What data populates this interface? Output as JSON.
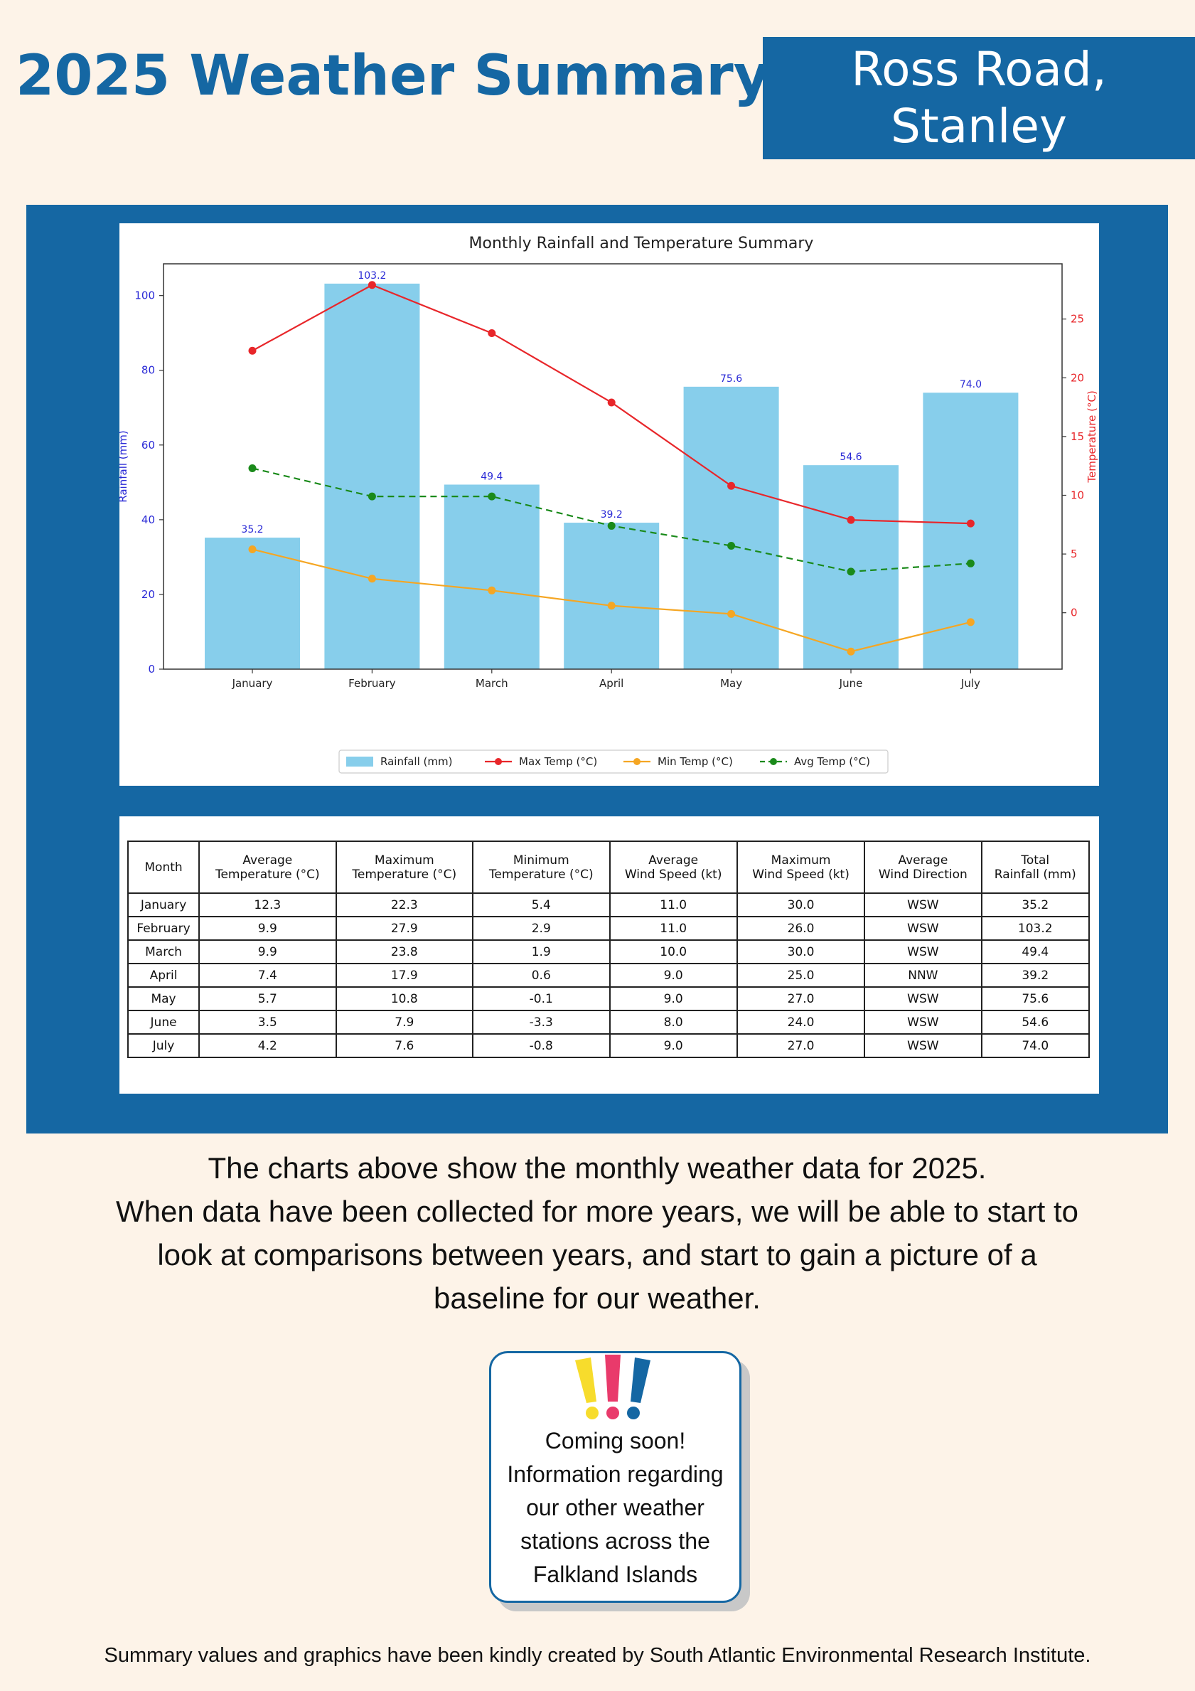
{
  "header": {
    "title": "2025 Weather Summary",
    "location_line1": "Ross Road,",
    "location_line2": "Stanley"
  },
  "colors": {
    "brand_blue": "#1567a3",
    "background": "#fdf3e8",
    "rainfall_bar": "#87ceeb",
    "max_temp": "#e8262a",
    "min_temp": "#f5a623",
    "avg_temp": "#1a8a1a"
  },
  "chart_data": {
    "type": "bar",
    "title": "Monthly Rainfall and Temperature Summary",
    "categories": [
      "January",
      "February",
      "March",
      "April",
      "May",
      "June",
      "July"
    ],
    "ylabel": "Rainfall (mm)",
    "y2label": "Temperature (°C)",
    "ylim": [
      0,
      108.5
    ],
    "y2lim": [
      -4.8,
      29.7
    ],
    "yticks": [
      0,
      20,
      40,
      60,
      80,
      100
    ],
    "y2ticks": [
      0,
      5,
      10,
      15,
      20,
      25
    ],
    "legend_position": "bottom-center",
    "grid": false,
    "series": [
      {
        "name": "Rainfall (mm)",
        "kind": "bar",
        "axis": "left",
        "values": [
          35.2,
          103.2,
          49.4,
          39.2,
          75.6,
          54.6,
          74.0
        ],
        "labels": [
          "35.2",
          "103.2",
          "49.4",
          "39.2",
          "75.6",
          "54.6",
          "74.0"
        ]
      },
      {
        "name": "Max Temp (°C)",
        "kind": "line",
        "axis": "right",
        "style": "solid",
        "values": [
          22.3,
          27.9,
          23.8,
          17.9,
          10.8,
          7.9,
          7.6
        ]
      },
      {
        "name": "Min Temp (°C)",
        "kind": "line",
        "axis": "right",
        "style": "solid",
        "values": [
          5.4,
          2.9,
          1.9,
          0.6,
          -0.1,
          -3.3,
          -0.8
        ]
      },
      {
        "name": "Avg Temp (°C)",
        "kind": "line",
        "axis": "right",
        "style": "dashed",
        "values": [
          12.3,
          9.9,
          9.9,
          7.4,
          5.7,
          3.5,
          4.2
        ]
      }
    ]
  },
  "table": {
    "headers": [
      [
        "Month"
      ],
      [
        "Average",
        "Temperature (°C)"
      ],
      [
        "Maximum",
        "Temperature (°C)"
      ],
      [
        "Minimum",
        "Temperature (°C)"
      ],
      [
        "Average",
        "Wind Speed (kt)"
      ],
      [
        "Maximum",
        "Wind Speed (kt)"
      ],
      [
        "Average",
        "Wind Direction"
      ],
      [
        "Total",
        "Rainfall (mm)"
      ]
    ],
    "rows": [
      [
        "January",
        "12.3",
        "22.3",
        "5.4",
        "11.0",
        "30.0",
        "WSW",
        "35.2"
      ],
      [
        "February",
        "9.9",
        "27.9",
        "2.9",
        "11.0",
        "26.0",
        "WSW",
        "103.2"
      ],
      [
        "March",
        "9.9",
        "23.8",
        "1.9",
        "10.0",
        "30.0",
        "WSW",
        "49.4"
      ],
      [
        "April",
        "7.4",
        "17.9",
        "0.6",
        "9.0",
        "25.0",
        "NNW",
        "39.2"
      ],
      [
        "May",
        "5.7",
        "10.8",
        "-0.1",
        "9.0",
        "27.0",
        "WSW",
        "75.6"
      ],
      [
        "June",
        "3.5",
        "7.9",
        "-3.3",
        "8.0",
        "24.0",
        "WSW",
        "54.6"
      ],
      [
        "July",
        "4.2",
        "7.6",
        "-0.8",
        "9.0",
        "27.0",
        "WSW",
        "74.0"
      ]
    ]
  },
  "description": {
    "line1": "The charts above show the monthly weather data for 2025.",
    "line2": "When data have been collected for more years, we will be able to start to",
    "line3": "look at comparisons between years, and start to gain a picture of a",
    "line4": "baseline for our weather."
  },
  "notice": {
    "icon": "exclamation-marks-icon",
    "lines": [
      "Coming soon!",
      "Information regarding",
      "our other weather",
      "stations across the",
      "Falkland Islands"
    ]
  },
  "footer": {
    "credit": "Summary values and graphics have been kindly created by South Atlantic Environmental Research Institute."
  }
}
